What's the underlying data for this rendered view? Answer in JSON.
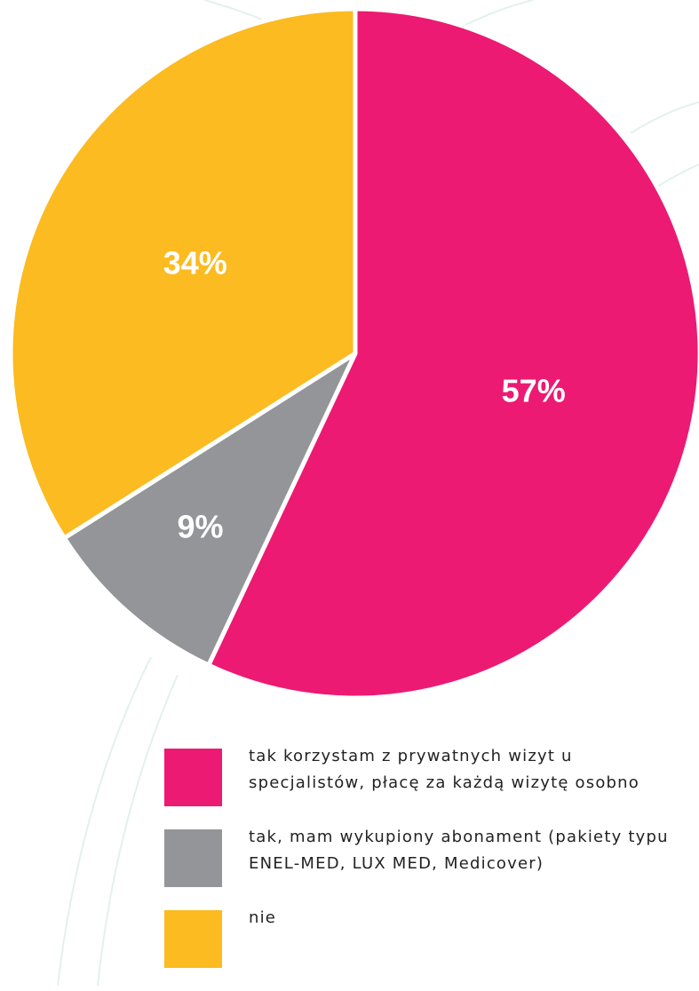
{
  "chart_data": {
    "type": "pie",
    "categories": [
      "tak korzystam z prywatnych wizyt u specjalistów, płacę za każdą wizytę osobno",
      "tak, mam wykupiony abonament (pakiety typu ENEL-MED, LUX MED, Medicover)",
      "nie"
    ],
    "values": [
      57,
      9,
      34
    ],
    "value_labels": [
      "57%",
      "9%",
      "34%"
    ],
    "colors": [
      "#ec1a72",
      "#939598",
      "#fbbb21"
    ],
    "legend": "bottom"
  }
}
